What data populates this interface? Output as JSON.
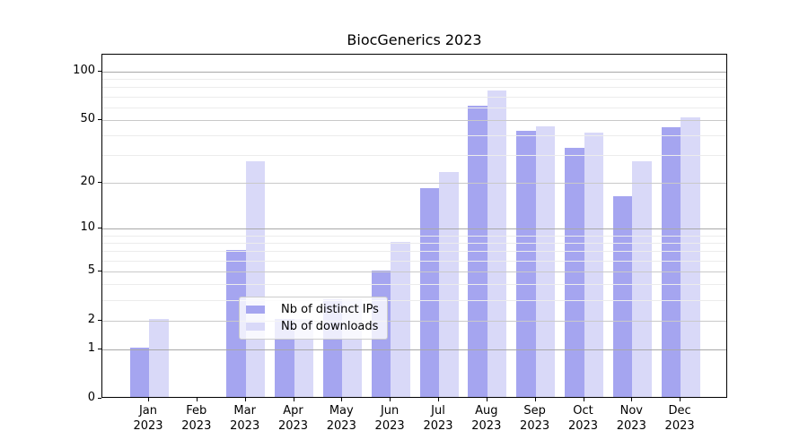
{
  "figure": {
    "title": "BiocGenerics 2023"
  },
  "chart_data": {
    "type": "bar",
    "title": "BiocGenerics 2023",
    "categories": [
      {
        "month": "Jan",
        "year": "2023"
      },
      {
        "month": "Feb",
        "year": "2023"
      },
      {
        "month": "Mar",
        "year": "2023"
      },
      {
        "month": "Apr",
        "year": "2023"
      },
      {
        "month": "May",
        "year": "2023"
      },
      {
        "month": "Jun",
        "year": "2023"
      },
      {
        "month": "Jul",
        "year": "2023"
      },
      {
        "month": "Aug",
        "year": "2023"
      },
      {
        "month": "Sep",
        "year": "2023"
      },
      {
        "month": "Oct",
        "year": "2023"
      },
      {
        "month": "Nov",
        "year": "2023"
      },
      {
        "month": "Dec",
        "year": "2023"
      }
    ],
    "series": [
      {
        "name": "Nb of distinct IPs",
        "color": "#a5a5f0",
        "values": [
          1,
          0,
          7,
          2,
          3,
          5,
          18,
          60,
          42,
          33,
          16,
          44
        ]
      },
      {
        "name": "Nb of downloads",
        "color": "#d9d9f8",
        "values": [
          2,
          0,
          27,
          2,
          3,
          8,
          23,
          75,
          45,
          41,
          27,
          51
        ]
      }
    ],
    "xlabel": "",
    "ylabel": "",
    "y_axis": {
      "scale": "log1p",
      "ticks": [
        0,
        1,
        2,
        5,
        10,
        20,
        50,
        100
      ],
      "decade_ticks": [
        1,
        10,
        100
      ],
      "minor_gridlines": [
        3,
        4,
        6,
        7,
        8,
        9,
        30,
        40,
        60,
        70,
        80,
        90
      ],
      "ylim": [
        0,
        128
      ]
    },
    "legend": {
      "position": "inside lower-center",
      "entries": [
        "Nb of distinct IPs",
        "Nb of downloads"
      ]
    },
    "grid": "horizontal, drawn above bars"
  }
}
